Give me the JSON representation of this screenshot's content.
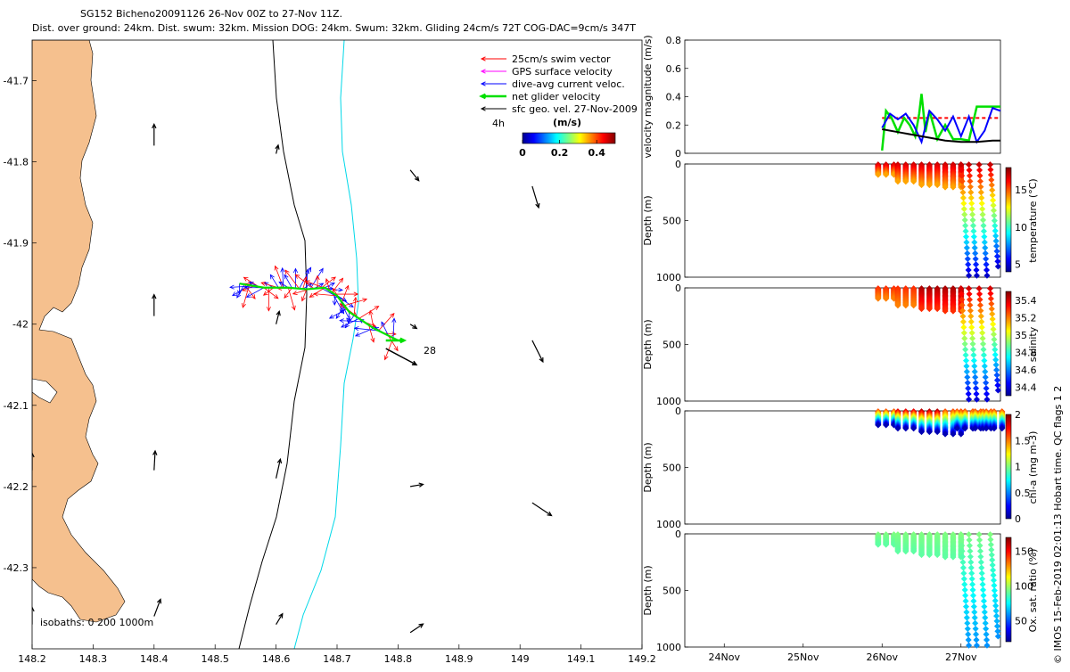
{
  "title": {
    "line1": "SG152 Bicheno20091126 26-Nov 00Z to 27-Nov 11Z.",
    "line2": "Dist. over ground: 24km. Dist. swum: 32km. Mission DOG: 24km. Swum: 32km. Gliding 24cm/s 72T COG-DAC=9cm/s 347T"
  },
  "footer_note": "© IMOS 15-Feb-2019 02:01:13 Hobart time. QC flags 1 2",
  "colors": {
    "land": "#F5C08E",
    "swim_vector": "#FF0000",
    "gps_surface": "#FF00FF",
    "dive_avg_current": "#0000FF",
    "net_glider": "#00E000",
    "sfc_geo": "#000000",
    "isobath_200": "#000000",
    "isobath_1000": "#00D8E8"
  },
  "chart_data": [
    {
      "type": "scatter",
      "name": "map",
      "xlim": [
        148.2,
        149.2
      ],
      "ylim": [
        -42.4,
        -41.65
      ],
      "x_ticks": [
        "148.2",
        "148.3",
        "148.4",
        "148.5",
        "148.6",
        "148.7",
        "148.8",
        "148.9",
        "149",
        "149.1",
        "149.2"
      ],
      "y_ticks": [
        "-41.7",
        "-41.8",
        "-41.9",
        "-42",
        "-42.1",
        "-42.2",
        "-42.3"
      ],
      "legend": [
        {
          "label": "25cm/s swim vector",
          "color": "#FF0000"
        },
        {
          "label": "GPS surface velocity",
          "color": "#FF00FF"
        },
        {
          "label": "dive-avg current veloc.",
          "color": "#0000FF"
        },
        {
          "label": "net glider velocity",
          "color": "#00E000"
        },
        {
          "label": "sfc geo. vel. 27-Nov-2009",
          "color": "#000000"
        }
      ],
      "legend_placement": "top-right",
      "colorbar": {
        "label": "(m/s)",
        "side_label": "4h",
        "ticks": [
          "0",
          "0.2",
          "0.4"
        ],
        "range": [
          0,
          0.5
        ]
      },
      "isobath_label": "isobaths: 0   200   1000m",
      "track_label": "28",
      "geo_arrows": [
        {
          "lon": 148.4,
          "lat": -41.78,
          "u": 0.0,
          "v": 1.0
        },
        {
          "lon": 148.4,
          "lat": -41.99,
          "u": 0.0,
          "v": 1.0
        },
        {
          "lon": 148.4,
          "lat": -42.18,
          "u": 0.05,
          "v": 0.9
        },
        {
          "lon": 148.6,
          "lat": -41.79,
          "u": 0.1,
          "v": 0.4
        },
        {
          "lon": 148.6,
          "lat": -42.0,
          "u": 0.15,
          "v": 0.6
        },
        {
          "lon": 148.6,
          "lat": -42.19,
          "u": 0.2,
          "v": 0.9
        },
        {
          "lon": 148.6,
          "lat": -42.37,
          "u": 0.3,
          "v": 0.5
        },
        {
          "lon": 148.82,
          "lat": -41.81,
          "u": 0.4,
          "v": -0.5
        },
        {
          "lon": 148.82,
          "lat": -42.0,
          "u": 0.3,
          "v": -0.2
        },
        {
          "lon": 148.82,
          "lat": -42.2,
          "u": 0.6,
          "v": 0.1
        },
        {
          "lon": 149.02,
          "lat": -41.83,
          "u": 0.3,
          "v": -1.0
        },
        {
          "lon": 149.02,
          "lat": -42.02,
          "u": 0.5,
          "v": -1.0
        },
        {
          "lon": 149.02,
          "lat": -42.22,
          "u": 0.9,
          "v": -0.6
        },
        {
          "lon": 148.2,
          "lat": -42.18,
          "u": 0.0,
          "v": 0.8
        },
        {
          "lon": 148.2,
          "lat": -42.37,
          "u": 0.0,
          "v": 0.8
        },
        {
          "lon": 148.4,
          "lat": -42.36,
          "u": 0.3,
          "v": 0.8
        },
        {
          "lon": 148.82,
          "lat": -42.38,
          "u": 0.6,
          "v": 0.4
        }
      ],
      "glider_track": [
        {
          "lon": 148.54,
          "lat": -41.95
        },
        {
          "lon": 148.58,
          "lat": -41.955
        },
        {
          "lon": 148.62,
          "lat": -41.955
        },
        {
          "lon": 148.65,
          "lat": -41.957
        },
        {
          "lon": 148.68,
          "lat": -41.955
        },
        {
          "lon": 148.7,
          "lat": -41.965
        },
        {
          "lon": 148.72,
          "lat": -41.985
        },
        {
          "lon": 148.76,
          "lat": -42.005
        },
        {
          "lon": 148.8,
          "lat": -42.02
        }
      ]
    },
    {
      "type": "line",
      "name": "velocity",
      "ylabel": "velocity magnitude (m/s)",
      "ylim": [
        0,
        0.8
      ],
      "y_ticks": [
        "0",
        "0.2",
        "0.4",
        "0.6",
        "0.8"
      ],
      "x_domain": [
        23.5,
        27.5
      ],
      "series": [
        {
          "color": "#FF0000",
          "dashed": true,
          "x": [
            26.0,
            26.3,
            26.6,
            26.9,
            27.2,
            27.5
          ],
          "values": [
            0.25,
            0.25,
            0.25,
            0.25,
            0.25,
            0.25
          ]
        },
        {
          "color": "#00E000",
          "x": [
            26.0,
            26.05,
            26.12,
            26.2,
            26.28,
            26.35,
            26.42,
            26.47,
            26.5,
            26.55,
            26.6,
            26.7,
            26.8,
            26.9,
            27.0,
            27.1,
            27.2,
            27.25,
            27.3,
            27.4,
            27.5
          ],
          "values": [
            0.02,
            0.3,
            0.25,
            0.15,
            0.25,
            0.2,
            0.12,
            0.28,
            0.42,
            0.15,
            0.3,
            0.1,
            0.2,
            0.1,
            0.1,
            0.09,
            0.33,
            0.33,
            0.33,
            0.33,
            0.33
          ]
        },
        {
          "color": "#0000FF",
          "x": [
            26.0,
            26.1,
            26.2,
            26.3,
            26.4,
            26.5,
            26.6,
            26.7,
            26.8,
            26.9,
            27.0,
            27.1,
            27.2,
            27.3,
            27.4,
            27.5
          ],
          "values": [
            0.18,
            0.28,
            0.24,
            0.28,
            0.2,
            0.08,
            0.3,
            0.24,
            0.16,
            0.26,
            0.12,
            0.26,
            0.08,
            0.16,
            0.32,
            0.3
          ]
        },
        {
          "color": "#000000",
          "x": [
            26.0,
            26.2,
            26.4,
            26.6,
            26.8,
            27.0,
            27.2,
            27.4,
            27.5
          ],
          "values": [
            0.17,
            0.15,
            0.13,
            0.11,
            0.09,
            0.08,
            0.08,
            0.09,
            0.09
          ]
        }
      ]
    },
    {
      "type": "scatter",
      "name": "temperature",
      "ylabel": "Depth (m)",
      "colorbar_label": "temperature (°C)",
      "ylim": [
        1000,
        0
      ],
      "y_ticks": [
        "0",
        "500",
        "1000"
      ],
      "cbar_range": [
        4,
        18
      ],
      "cbar_ticks": [
        "5",
        "10",
        "15"
      ],
      "profiles": [
        {
          "x": 26.05,
          "max_depth": 90,
          "top": 17,
          "bottom": 14
        },
        {
          "x": 26.3,
          "max_depth": 150,
          "top": 17,
          "bottom": 14
        },
        {
          "x": 26.6,
          "max_depth": 180,
          "top": 17,
          "bottom": 14
        },
        {
          "x": 26.9,
          "max_depth": 200,
          "top": 17,
          "bottom": 14
        },
        {
          "x": 27.05,
          "max_depth": 980,
          "top": 17,
          "bottom": 5
        },
        {
          "x": 27.15,
          "max_depth": 980,
          "top": 17,
          "bottom": 5
        },
        {
          "x": 27.28,
          "max_depth": 980,
          "top": 17,
          "bottom": 5
        },
        {
          "x": 27.42,
          "max_depth": 900,
          "top": 17,
          "bottom": 5
        }
      ]
    },
    {
      "type": "scatter",
      "name": "salinity",
      "ylabel": "Depth (m)",
      "colorbar_label": "salinity",
      "ylim": [
        1000,
        0
      ],
      "y_ticks": [
        "0",
        "500",
        "1000"
      ],
      "cbar_range": [
        34.3,
        35.5
      ],
      "cbar_ticks": [
        "34.4",
        "34.6",
        "34.8",
        "35",
        "35.2",
        "35.4"
      ],
      "profiles": [
        {
          "x": 26.05,
          "max_depth": 90,
          "top": 35.3,
          "bottom": 35.2
        },
        {
          "x": 26.3,
          "max_depth": 150,
          "top": 35.3,
          "bottom": 35.2
        },
        {
          "x": 26.6,
          "max_depth": 180,
          "top": 35.45,
          "bottom": 35.3
        },
        {
          "x": 26.9,
          "max_depth": 200,
          "top": 35.45,
          "bottom": 35.3
        },
        {
          "x": 27.05,
          "max_depth": 980,
          "top": 35.4,
          "bottom": 34.4
        },
        {
          "x": 27.15,
          "max_depth": 980,
          "top": 35.4,
          "bottom": 34.4
        },
        {
          "x": 27.28,
          "max_depth": 980,
          "top": 35.4,
          "bottom": 34.4
        },
        {
          "x": 27.42,
          "max_depth": 900,
          "top": 35.4,
          "bottom": 34.4
        }
      ]
    },
    {
      "type": "scatter",
      "name": "chl-a",
      "ylabel": "Depth (m)",
      "colorbar_label": "chl-a (mg m-3)",
      "ylim": [
        1000,
        0
      ],
      "y_ticks": [
        "0",
        "500",
        "1000"
      ],
      "cbar_range": [
        0,
        2
      ],
      "cbar_ticks": [
        "0",
        "0.5",
        "1",
        "1.5",
        "2"
      ],
      "profiles": [
        {
          "x": 26.05,
          "max_depth": 120,
          "top": 1.6,
          "bottom": 0.1
        },
        {
          "x": 26.3,
          "max_depth": 150,
          "top": 1.8,
          "bottom": 0.1
        },
        {
          "x": 26.6,
          "max_depth": 180,
          "top": 1.9,
          "bottom": 0.1
        },
        {
          "x": 26.9,
          "max_depth": 200,
          "top": 1.6,
          "bottom": 0.1
        },
        {
          "x": 27.05,
          "max_depth": 150,
          "top": 1.6,
          "bottom": 0.1
        },
        {
          "x": 27.15,
          "max_depth": 150,
          "top": 1.6,
          "bottom": 0.1
        },
        {
          "x": 27.28,
          "max_depth": 150,
          "top": 1.6,
          "bottom": 0.1
        },
        {
          "x": 27.42,
          "max_depth": 150,
          "top": 1.6,
          "bottom": 0.1
        }
      ]
    },
    {
      "type": "scatter",
      "name": "oxygen",
      "ylabel": "Depth (m)",
      "colorbar_label": "Ox. sat. ratio (%)",
      "ylim": [
        1000,
        0
      ],
      "y_ticks": [
        "0",
        "500",
        "1000"
      ],
      "cbar_range": [
        20,
        170
      ],
      "cbar_ticks": [
        "50",
        "100",
        "150"
      ],
      "x_ticks": [
        "24Nov",
        "25Nov",
        "26Nov",
        "27Nov"
      ],
      "profiles": [
        {
          "x": 26.05,
          "max_depth": 90,
          "top": 95,
          "bottom": 90
        },
        {
          "x": 26.3,
          "max_depth": 150,
          "top": 95,
          "bottom": 90
        },
        {
          "x": 26.6,
          "max_depth": 180,
          "top": 95,
          "bottom": 90
        },
        {
          "x": 26.9,
          "max_depth": 200,
          "top": 95,
          "bottom": 90
        },
        {
          "x": 27.05,
          "max_depth": 980,
          "top": 95,
          "bottom": 60
        },
        {
          "x": 27.15,
          "max_depth": 980,
          "top": 95,
          "bottom": 60
        },
        {
          "x": 27.28,
          "max_depth": 980,
          "top": 95,
          "bottom": 60
        },
        {
          "x": 27.42,
          "max_depth": 900,
          "top": 95,
          "bottom": 60
        }
      ]
    }
  ]
}
